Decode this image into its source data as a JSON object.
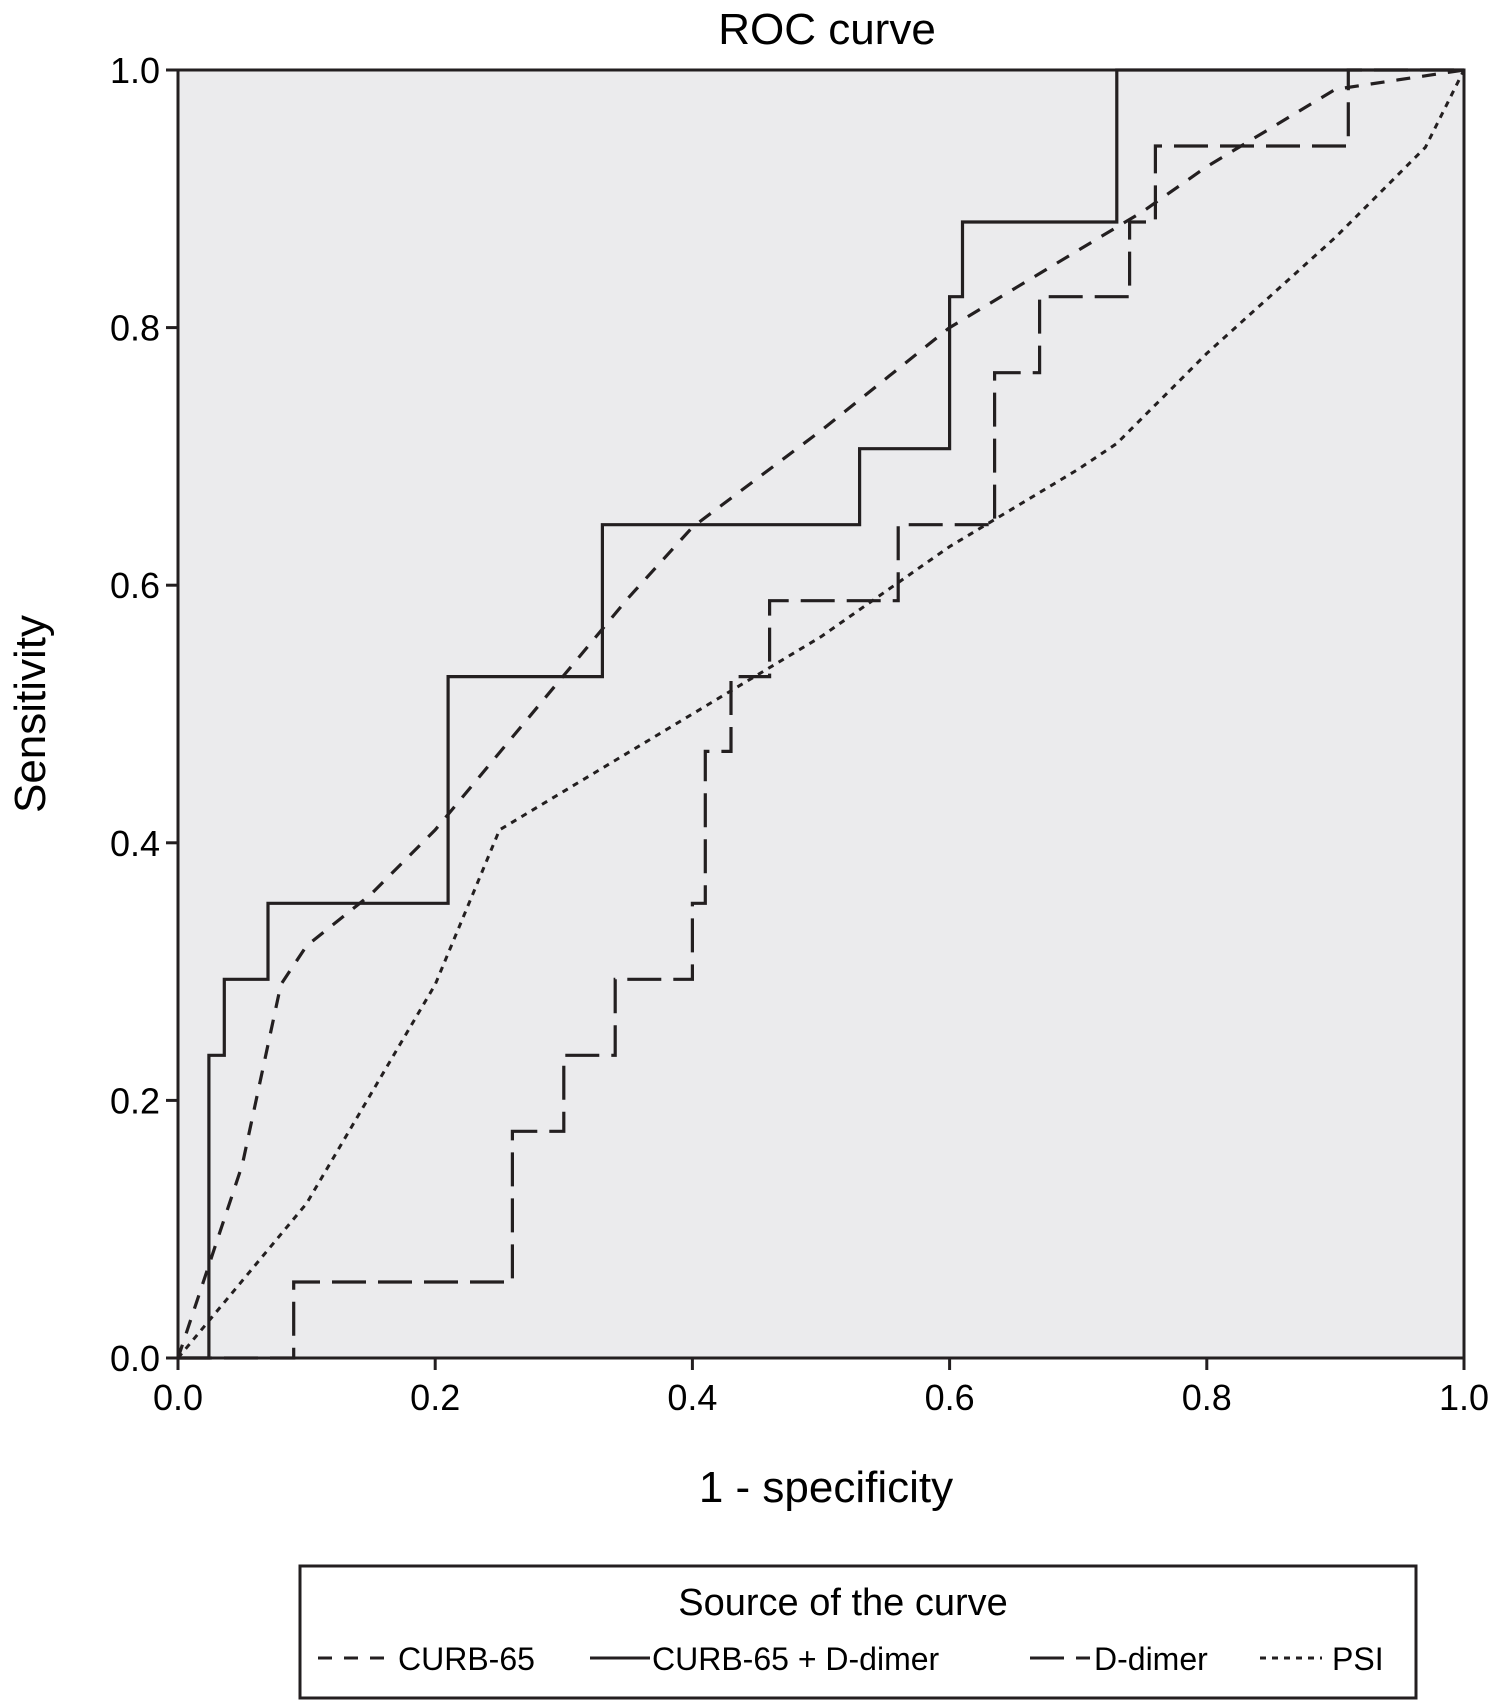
{
  "chart_data": {
    "type": "line",
    "title": "ROC curve",
    "xlabel": "1 - specificity",
    "ylabel": "Sensitivity",
    "xlim": [
      0,
      1
    ],
    "ylim": [
      0,
      1
    ],
    "xticks": [
      "0.0",
      "0.2",
      "0.4",
      "0.6",
      "0.8",
      "1.0"
    ],
    "yticks": [
      "0.0",
      "0.2",
      "0.4",
      "0.6",
      "0.8",
      "1.0"
    ],
    "grid": false,
    "legend_title": "Source of the curve",
    "legend_position": "bottom",
    "series": [
      {
        "name": "CURB-65",
        "style": "dashed-short",
        "x": [
          0.0,
          0.05,
          0.08,
          0.1,
          0.15,
          0.2,
          0.25,
          0.3,
          0.35,
          0.4,
          0.5,
          0.6,
          0.7,
          0.75,
          0.8,
          0.9,
          1.0
        ],
        "y": [
          0.0,
          0.15,
          0.29,
          0.32,
          0.36,
          0.41,
          0.47,
          0.53,
          0.59,
          0.645,
          0.72,
          0.8,
          0.86,
          0.89,
          0.925,
          0.985,
          1.0
        ]
      },
      {
        "name": "CURB-65 + D-dimer",
        "style": "solid",
        "x": [
          0.0,
          0.024,
          0.024,
          0.036,
          0.036,
          0.07,
          0.07,
          0.21,
          0.21,
          0.33,
          0.33,
          0.53,
          0.53,
          0.6,
          0.6,
          0.61,
          0.61,
          0.73,
          0.73,
          1.0
        ],
        "y": [
          0.0,
          0.0,
          0.235,
          0.235,
          0.294,
          0.294,
          0.353,
          0.353,
          0.529,
          0.529,
          0.647,
          0.647,
          0.706,
          0.706,
          0.824,
          0.824,
          0.882,
          0.882,
          1.0,
          1.0
        ]
      },
      {
        "name": "D-dimer",
        "style": "dashed-long",
        "x": [
          0.0,
          0.09,
          0.09,
          0.26,
          0.26,
          0.3,
          0.3,
          0.34,
          0.34,
          0.4,
          0.4,
          0.41,
          0.41,
          0.43,
          0.43,
          0.46,
          0.46,
          0.56,
          0.56,
          0.635,
          0.635,
          0.67,
          0.67,
          0.74,
          0.74,
          0.76,
          0.76,
          0.91,
          0.91,
          1.0
        ],
        "y": [
          0.0,
          0.0,
          0.059,
          0.059,
          0.176,
          0.176,
          0.235,
          0.235,
          0.294,
          0.294,
          0.353,
          0.353,
          0.471,
          0.471,
          0.529,
          0.529,
          0.588,
          0.588,
          0.647,
          0.647,
          0.765,
          0.765,
          0.824,
          0.824,
          0.882,
          0.882,
          0.941,
          0.941,
          1.0,
          1.0
        ]
      },
      {
        "name": "PSI",
        "style": "dotted",
        "x": [
          0.0,
          0.1,
          0.2,
          0.25,
          0.3,
          0.4,
          0.5,
          0.6,
          0.7,
          0.73,
          0.8,
          0.9,
          0.97,
          1.0
        ],
        "y": [
          0.0,
          0.12,
          0.29,
          0.41,
          0.44,
          0.5,
          0.56,
          0.63,
          0.69,
          0.71,
          0.78,
          0.87,
          0.94,
          1.0
        ]
      }
    ]
  }
}
